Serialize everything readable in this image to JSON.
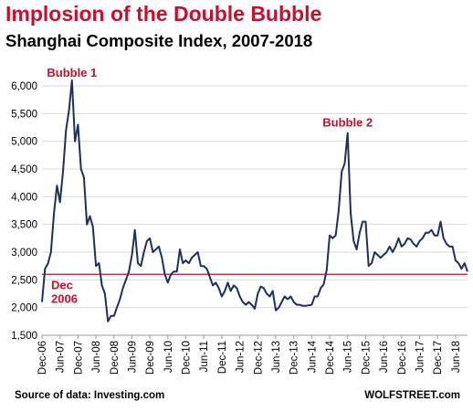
{
  "chart_data": {
    "type": "line",
    "title": "Implosion of the Double Bubble",
    "subtitle": "Shanghai  Composite Index, 2007-2018",
    "ylim": [
      1500,
      6000
    ],
    "yticks": [
      1500,
      2000,
      2500,
      3000,
      3500,
      4000,
      4500,
      5000,
      5500,
      6000
    ],
    "ytick_labels": [
      "1,500",
      "2,000",
      "2,500",
      "3,000",
      "3,500",
      "4,000",
      "4,500",
      "5,000",
      "5,500",
      "6,000"
    ],
    "xlim": [
      "2006-12",
      "2018-10"
    ],
    "xtick_labels": [
      "Dec-06",
      "Jun-07",
      "Dec-07",
      "Jun-08",
      "Dec-08",
      "Jun-09",
      "Dec-09",
      "Jun-10",
      "Dec-10",
      "Jun-11",
      "Dec-11",
      "Jun-12",
      "Dec-12",
      "Jun-13",
      "Dec-13",
      "Jun-14",
      "Dec-14",
      "Jun-15",
      "Dec-15",
      "Jun-16",
      "Dec-16",
      "Jun-17",
      "Dec-17",
      "Jun-18"
    ],
    "grid": "horizontal",
    "reference_line": {
      "value": 2600,
      "label": "Dec 2006",
      "color": "#c8102e"
    },
    "annotations": [
      {
        "text": "Bubble 1",
        "x": "2007-10",
        "y": 6100
      },
      {
        "text": "Bubble 2",
        "x": "2015-06",
        "y": 5200
      }
    ],
    "series": [
      {
        "color": "#1f2f5c",
        "points": [
          [
            "2006-12",
            2100
          ],
          [
            "2007-01",
            2700
          ],
          [
            "2007-02",
            2800
          ],
          [
            "2007-03",
            3000
          ],
          [
            "2007-04",
            3700
          ],
          [
            "2007-05",
            4200
          ],
          [
            "2007-06",
            3900
          ],
          [
            "2007-07",
            4450
          ],
          [
            "2007-08",
            5200
          ],
          [
            "2007-09",
            5550
          ],
          [
            "2007-10",
            6100
          ],
          [
            "2007-11",
            5000
          ],
          [
            "2007-12",
            5300
          ],
          [
            "2008-01",
            4500
          ],
          [
            "2008-02",
            4350
          ],
          [
            "2008-03",
            3500
          ],
          [
            "2008-04",
            3650
          ],
          [
            "2008-05",
            3450
          ],
          [
            "2008-06",
            2750
          ],
          [
            "2008-07",
            2800
          ],
          [
            "2008-08",
            2400
          ],
          [
            "2008-09",
            2250
          ],
          [
            "2008-10",
            1750
          ],
          [
            "2008-11",
            1850
          ],
          [
            "2008-12",
            1850
          ],
          [
            "2009-01",
            2000
          ],
          [
            "2009-02",
            2150
          ],
          [
            "2009-03",
            2350
          ],
          [
            "2009-04",
            2500
          ],
          [
            "2009-05",
            2650
          ],
          [
            "2009-06",
            2950
          ],
          [
            "2009-07",
            3400
          ],
          [
            "2009-08",
            2800
          ],
          [
            "2009-09",
            2750
          ],
          [
            "2009-10",
            3000
          ],
          [
            "2009-11",
            3200
          ],
          [
            "2009-12",
            3250
          ],
          [
            "2010-01",
            3000
          ],
          [
            "2010-02",
            3050
          ],
          [
            "2010-03",
            3100
          ],
          [
            "2010-04",
            2900
          ],
          [
            "2010-05",
            2600
          ],
          [
            "2010-06",
            2450
          ],
          [
            "2010-07",
            2600
          ],
          [
            "2010-08",
            2650
          ],
          [
            "2010-09",
            2650
          ],
          [
            "2010-10",
            3050
          ],
          [
            "2010-11",
            2800
          ],
          [
            "2010-12",
            2850
          ],
          [
            "2011-01",
            2800
          ],
          [
            "2011-02",
            2900
          ],
          [
            "2011-03",
            2950
          ],
          [
            "2011-04",
            3000
          ],
          [
            "2011-05",
            2750
          ],
          [
            "2011-06",
            2750
          ],
          [
            "2011-07",
            2700
          ],
          [
            "2011-08",
            2550
          ],
          [
            "2011-09",
            2400
          ],
          [
            "2011-10",
            2450
          ],
          [
            "2011-11",
            2350
          ],
          [
            "2011-12",
            2200
          ],
          [
            "2012-01",
            2300
          ],
          [
            "2012-02",
            2450
          ],
          [
            "2012-03",
            2300
          ],
          [
            "2012-04",
            2400
          ],
          [
            "2012-05",
            2350
          ],
          [
            "2012-06",
            2200
          ],
          [
            "2012-07",
            2100
          ],
          [
            "2012-08",
            2050
          ],
          [
            "2012-09",
            2100
          ],
          [
            "2012-10",
            2050
          ],
          [
            "2012-11",
            1980
          ],
          [
            "2012-12",
            2250
          ],
          [
            "2013-01",
            2380
          ],
          [
            "2013-02",
            2350
          ],
          [
            "2013-03",
            2250
          ],
          [
            "2013-04",
            2200
          ],
          [
            "2013-05",
            2300
          ],
          [
            "2013-06",
            1950
          ],
          [
            "2013-07",
            2000
          ],
          [
            "2013-08",
            2100
          ],
          [
            "2013-09",
            2200
          ],
          [
            "2013-10",
            2150
          ],
          [
            "2013-11",
            2200
          ],
          [
            "2013-12",
            2100
          ],
          [
            "2014-01",
            2050
          ],
          [
            "2014-02",
            2050
          ],
          [
            "2014-03",
            2030
          ],
          [
            "2014-04",
            2030
          ],
          [
            "2014-05",
            2040
          ],
          [
            "2014-06",
            2050
          ],
          [
            "2014-07",
            2200
          ],
          [
            "2014-08",
            2200
          ],
          [
            "2014-09",
            2350
          ],
          [
            "2014-10",
            2420
          ],
          [
            "2014-11",
            2680
          ],
          [
            "2014-12",
            3300
          ],
          [
            "2015-01",
            3250
          ],
          [
            "2015-02",
            3300
          ],
          [
            "2015-03",
            3750
          ],
          [
            "2015-04",
            4450
          ],
          [
            "2015-05",
            4600
          ],
          [
            "2015-06",
            5150
          ],
          [
            "2015-07",
            3700
          ],
          [
            "2015-08",
            3200
          ],
          [
            "2015-09",
            3050
          ],
          [
            "2015-10",
            3350
          ],
          [
            "2015-11",
            3550
          ],
          [
            "2015-12",
            3550
          ],
          [
            "2016-01",
            2750
          ],
          [
            "2016-02",
            2800
          ],
          [
            "2016-03",
            3000
          ],
          [
            "2016-04",
            2950
          ],
          [
            "2016-05",
            2900
          ],
          [
            "2016-06",
            2950
          ],
          [
            "2016-07",
            3000
          ],
          [
            "2016-08",
            3100
          ],
          [
            "2016-09",
            3000
          ],
          [
            "2016-10",
            3100
          ],
          [
            "2016-11",
            3250
          ],
          [
            "2016-12",
            3100
          ],
          [
            "2017-01",
            3150
          ],
          [
            "2017-02",
            3250
          ],
          [
            "2017-03",
            3230
          ],
          [
            "2017-04",
            3150
          ],
          [
            "2017-05",
            3100
          ],
          [
            "2017-06",
            3200
          ],
          [
            "2017-07",
            3250
          ],
          [
            "2017-08",
            3350
          ],
          [
            "2017-09",
            3350
          ],
          [
            "2017-10",
            3400
          ],
          [
            "2017-11",
            3300
          ],
          [
            "2017-12",
            3300
          ],
          [
            "2018-01",
            3550
          ],
          [
            "2018-02",
            3250
          ],
          [
            "2018-03",
            3150
          ],
          [
            "2018-04",
            3100
          ],
          [
            "2018-05",
            3100
          ],
          [
            "2018-06",
            2850
          ],
          [
            "2018-07",
            2800
          ],
          [
            "2018-08",
            2700
          ],
          [
            "2018-09",
            2800
          ],
          [
            "2018-10",
            2650
          ]
        ]
      }
    ]
  },
  "footer": {
    "source": "Source of data: Investing.com",
    "brand": "WOLFSTREET.com"
  }
}
